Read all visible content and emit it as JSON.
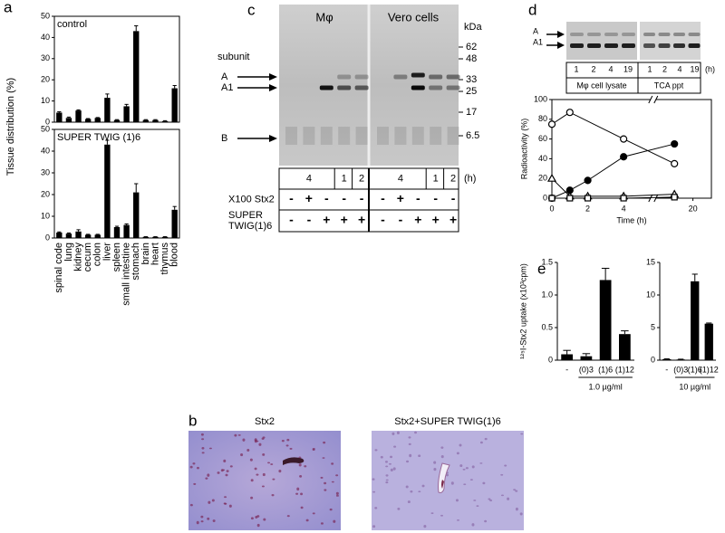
{
  "chart_data": [
    {
      "type": "bar",
      "title": "control",
      "ylabel": "Tissue distribution (%)",
      "values": [
        4.5,
        2,
        5.5,
        1.5,
        2,
        11.5,
        1,
        7.5,
        43,
        1,
        1,
        0.5,
        16
      ],
      "errors": [
        0.4,
        0.4,
        0.3,
        0.2,
        0.2,
        1.8,
        0.2,
        0.9,
        2.5,
        0.2,
        0.2,
        0.2,
        1.3
      ],
      "color": "#000000",
      "ylim": [
        0,
        50
      ],
      "yticks": [
        0,
        10,
        20,
        30,
        40,
        50
      ]
    },
    {
      "type": "bar",
      "title": "SUPER TWIG (1)6",
      "categories": [
        "spinal code",
        "lung",
        "kidney",
        "cecum",
        "colon",
        "liver",
        "spleen",
        "small intestine",
        "stomach",
        "brain",
        "heart",
        "thymus",
        "blood"
      ],
      "values": [
        2.5,
        2,
        3,
        1.5,
        1.5,
        43,
        5,
        6,
        21,
        0.5,
        0.5,
        0.5,
        13
      ],
      "errors": [
        0.3,
        0.3,
        0.8,
        0.2,
        0.2,
        2,
        0.4,
        0.5,
        4,
        0.1,
        0.1,
        0.1,
        1.5
      ],
      "color": "#000000",
      "ylim": [
        0,
        50
      ],
      "yticks": [
        0,
        10,
        20,
        30,
        40,
        50
      ]
    },
    {
      "type": "line",
      "ylabel": "Radioactivity (%)",
      "xlabel": "Time (h)",
      "xlim": [
        0,
        21
      ],
      "axis_break": [
        5.5,
        18
      ],
      "xticks": [
        0,
        2,
        4,
        20
      ],
      "ylim": [
        0,
        100
      ],
      "yticks": [
        0,
        20,
        40,
        60,
        80,
        100
      ],
      "series": [
        {
          "marker": "circle-open",
          "color": "#000000",
          "x": [
            0,
            1,
            4,
            19
          ],
          "values": [
            75,
            87,
            60,
            35
          ]
        },
        {
          "marker": "circle-filled",
          "color": "#000000",
          "x": [
            0,
            1,
            2,
            4,
            19
          ],
          "values": [
            0,
            8,
            18,
            42,
            55
          ]
        },
        {
          "marker": "triangle-open",
          "color": "#000000",
          "x": [
            0,
            1,
            2,
            4,
            19
          ],
          "values": [
            20,
            2,
            2,
            2,
            4
          ]
        },
        {
          "marker": "square-open",
          "color": "#000000",
          "x": [
            0,
            1,
            2,
            4,
            19
          ],
          "values": [
            0,
            0,
            0,
            0,
            1
          ]
        }
      ]
    },
    {
      "type": "bar",
      "ylabel": "¹²⁵I-Stx2 uptake (x10³cpm)",
      "group_label": "1.0 µg/ml",
      "categories": [
        "-",
        "(0)3",
        "(1)6",
        "(1)12"
      ],
      "values": [
        0.09,
        0.06,
        1.23,
        0.4
      ],
      "errors": [
        0.06,
        0.04,
        0.18,
        0.05
      ],
      "color": "#000000",
      "ylim": [
        0,
        1.5
      ],
      "yticks": [
        0,
        0.5,
        {
          "value": 1,
          "label": "1.0"
        },
        1.5
      ]
    },
    {
      "type": "bar",
      "group_label": "10 µg/ml",
      "categories": [
        "-",
        "(0)3",
        "(1)6",
        "(1)12"
      ],
      "values": [
        0.15,
        0.1,
        12.1,
        5.6
      ],
      "errors": [
        0.05,
        0.05,
        1.1,
        0.1
      ],
      "color": "#000000",
      "ylim": [
        0,
        15
      ],
      "yticks": [
        0,
        5,
        10,
        15
      ]
    }
  ],
  "figure": {
    "panel_labels": [
      "a",
      "b",
      "c",
      "d",
      "e"
    ],
    "gel_c": {
      "groups": [
        "Mφ",
        "Vero cells"
      ],
      "kda_label": "kDa",
      "markers": [
        "62",
        "48",
        "33",
        "25",
        "17",
        "6.5"
      ],
      "subunit_label": "subunit",
      "bands": [
        "A",
        "A1",
        "B"
      ],
      "time_row": [
        "4",
        "1",
        "2",
        "4",
        "1",
        "2"
      ],
      "time_unit": "(h)",
      "rows": [
        {
          "label": [
            "X100 Stx2"
          ],
          "cells": [
            "-",
            "+",
            "-",
            "-",
            "-",
            "-",
            "+",
            "-",
            "-",
            "-"
          ]
        },
        {
          "label": [
            "SUPER",
            "TWIG(1)6"
          ],
          "cells": [
            "-",
            "-",
            "+",
            "+",
            "+",
            "-",
            "-",
            "+",
            "+",
            "+"
          ]
        }
      ]
    },
    "gel_d": {
      "bands": [
        "A",
        "A1"
      ],
      "lanes": [
        "1",
        "2",
        "4",
        "19",
        "1",
        "2",
        "4",
        "19"
      ],
      "time_unit": "(h)",
      "groups": [
        "Mφ cell lysate",
        "TCA ppt"
      ]
    },
    "histology": [
      "Stx2",
      "Stx2+SUPER TWIG(1)6"
    ]
  }
}
